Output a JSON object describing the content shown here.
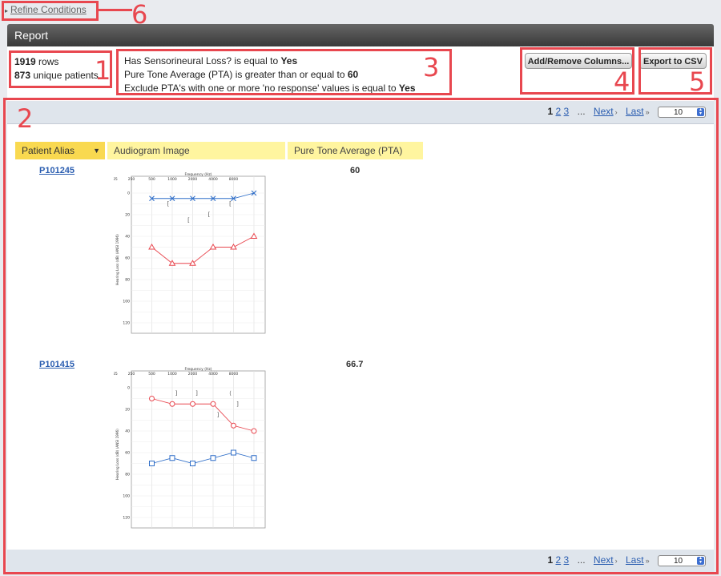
{
  "refine": {
    "label": "Refine Conditions"
  },
  "report": {
    "title": "Report"
  },
  "summary": {
    "rows_count": "1919",
    "rows_label": "rows",
    "patients_count": "873",
    "patients_label": "unique patients"
  },
  "conditions": [
    {
      "text": "Has Sensorineural Loss? is equal to ",
      "value": "Yes"
    },
    {
      "text": "Pure Tone Average (PTA) is greater than or equal to ",
      "value": "60"
    },
    {
      "text": "Exclude PTA's with one or more 'no response' values is equal to ",
      "value": "Yes"
    }
  ],
  "buttons": {
    "add_remove": "Add/Remove Columns...",
    "export": "Export to CSV"
  },
  "pager": {
    "pages": [
      "1",
      "2",
      "3"
    ],
    "current": "1",
    "dots": "...",
    "next": "Next",
    "next_sep": "›",
    "last": "Last",
    "last_sep": "»",
    "per_page": "10"
  },
  "columns": {
    "patient": "Patient Alias",
    "image": "Audiogram Image",
    "pta": "Pure Tone Average (PTA)"
  },
  "rows": [
    {
      "alias": "P101245",
      "pta": "60"
    },
    {
      "alias": "P101415",
      "pta": "66.7"
    }
  ],
  "audiogram": {
    "freq_title": "Frequency (Hz)",
    "freq_ticks": [
      "125",
      "250",
      "500",
      "1000",
      "2000",
      "4000",
      "8000"
    ],
    "db_ticks": [
      "0",
      "20",
      "40",
      "60",
      "80",
      "100",
      "120"
    ],
    "y_label": "Hearing Loss (dB) (ANSI 1996)"
  },
  "callouts": [
    "1",
    "2",
    "3",
    "4",
    "5",
    "6"
  ],
  "colors": {
    "callout": "#e8474f",
    "link": "#2a5db0",
    "header": "#fff59f",
    "sorted_header": "#f9d950",
    "right_ear": "#e8474f",
    "left_ear": "#2f6ec8"
  }
}
